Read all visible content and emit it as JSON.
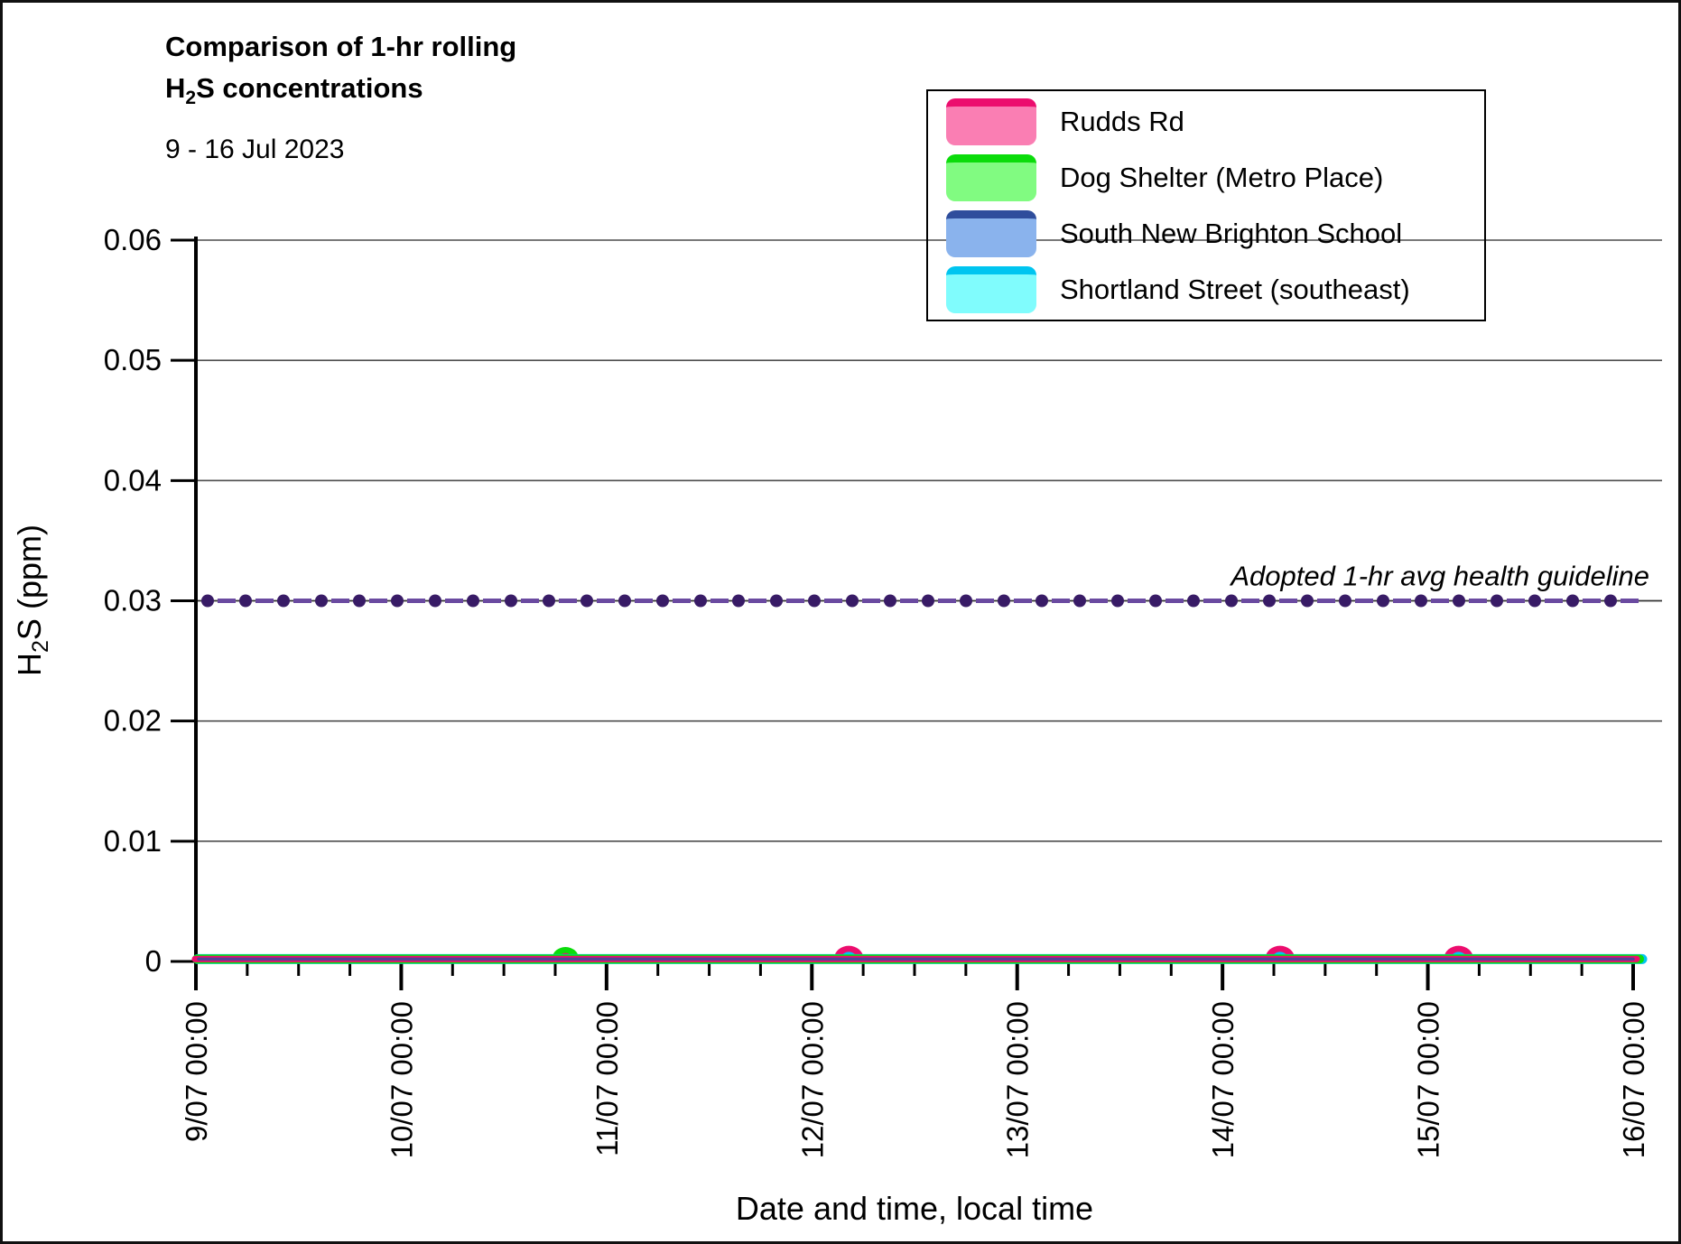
{
  "header": {
    "title_line1": "Comparison of 1-hr rolling",
    "title_line2_pre": "H",
    "title_line2_sub": "2",
    "title_line2_post": "S concentrations",
    "subtitle": "9 - 16 Jul 2023"
  },
  "chart_data": {
    "type": "line",
    "title": "Comparison of 1-hr rolling H2S concentrations",
    "subtitle": "9 - 16 Jul 2023",
    "xlabel": "Date and time, local time",
    "ylabel_parts": {
      "pre": "H",
      "sub": "2",
      "post": "S (ppm)"
    },
    "x_axis": {
      "days": 7,
      "major_tick_labels": [
        "9/07 00:00",
        "10/07 00:00",
        "11/07 00:00",
        "12/07 00:00",
        "13/07 00:00",
        "14/07 00:00",
        "15/07 00:00",
        "16/07 00:00"
      ],
      "minor_tick_interval_hours": 6
    },
    "y_axis": {
      "min": 0,
      "max": 0.06,
      "tick_step": 0.01,
      "tick_labels": [
        "0",
        "0.01",
        "0.02",
        "0.03",
        "0.04",
        "0.05",
        "0.06"
      ],
      "grid": true
    },
    "guideline": {
      "value": 0.03,
      "label": "Adopted 1-hr avg health guideline",
      "dot_color": "#381B66",
      "dash_color": "#6A4AA0",
      "line_color": "#333333"
    },
    "grid_color": "#4d4d4d",
    "series": [
      {
        "name": "Rudds Rd",
        "line_color": "#EC0D6E",
        "fill_color": "#FA7EB3",
        "baseline_ppm": 0.0002,
        "peaks": [
          {
            "day": 1.8,
            "time": "10/07 19:00",
            "ppm": 0.0004
          },
          {
            "day": 3.18,
            "time": "12/07 04:30",
            "ppm": 0.001
          },
          {
            "day": 5.28,
            "time": "14/07 06:45",
            "ppm": 0.001
          },
          {
            "day": 6.15,
            "time": "15/07 03:30",
            "ppm": 0.001
          }
        ]
      },
      {
        "name": "Dog Shelter (Metro Place)",
        "line_color": "#0BDC0B",
        "fill_color": "#81FB81",
        "baseline_ppm": 0.0002,
        "peaks": [
          {
            "day": 1.8,
            "time": "10/07 19:00",
            "ppm": 0.0009
          }
        ]
      },
      {
        "name": "South New Brighton School",
        "line_color": "#2F4D9C",
        "fill_color": "#8AB3ED",
        "baseline_ppm": 0.0002,
        "peaks": []
      },
      {
        "name": "Shortland Street (southeast)",
        "line_color": "#00C5F0",
        "fill_color": "#80FCFD",
        "baseline_ppm": 0.0002,
        "peaks": [
          {
            "day": 3.18,
            "time": "12/07 04:30",
            "ppm": 0.0005
          },
          {
            "day": 5.28,
            "time": "14/07 06:45",
            "ppm": 0.0005
          },
          {
            "day": 6.15,
            "time": "15/07 03:30",
            "ppm": 0.0005
          }
        ]
      }
    ]
  }
}
